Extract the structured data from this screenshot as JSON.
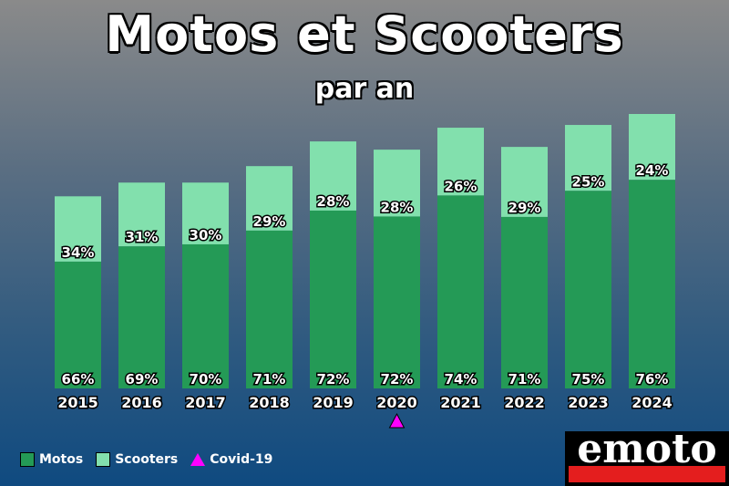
{
  "title": "Motos et Scooters",
  "subtitle": "par an",
  "legend": {
    "motos": "Motos",
    "scooters": "Scooters",
    "covid": "Covid-19"
  },
  "logo": "emoto",
  "colors": {
    "motos": "#249a56",
    "scooters": "#82e0ad",
    "covid": "#ff00ff"
  },
  "chart_data": {
    "type": "bar",
    "stacked": true,
    "categories": [
      "2015",
      "2016",
      "2017",
      "2018",
      "2019",
      "2020",
      "2021",
      "2022",
      "2023",
      "2024"
    ],
    "series": [
      {
        "name": "Motos",
        "values": [
          66,
          69,
          70,
          71,
          72,
          72,
          74,
          71,
          75,
          76
        ],
        "labels": [
          "66%",
          "69%",
          "70%",
          "71%",
          "72%",
          "72%",
          "74%",
          "71%",
          "75%",
          "76%"
        ]
      },
      {
        "name": "Scooters",
        "values": [
          34,
          31,
          30,
          29,
          28,
          28,
          26,
          29,
          25,
          24
        ],
        "labels": [
          "34%",
          "31%",
          "30%",
          "29%",
          "28%",
          "28%",
          "26%",
          "29%",
          "25%",
          "24%"
        ]
      }
    ],
    "total_relative": [
      0.7,
      0.75,
      0.75,
      0.81,
      0.9,
      0.87,
      0.95,
      0.88,
      0.96,
      1.0
    ],
    "annotations": [
      {
        "category": "2020",
        "marker": "triangle",
        "label": "Covid-19"
      }
    ],
    "axes_visible": false,
    "grid": false,
    "legend_position": "bottom-left"
  }
}
